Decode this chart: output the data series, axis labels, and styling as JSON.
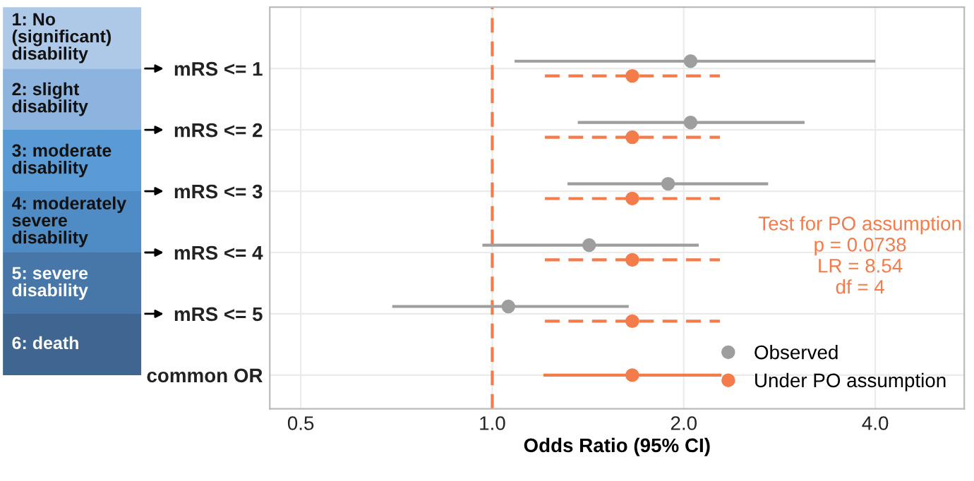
{
  "chart_data": {
    "type": "scatter",
    "orientation": "horizontal",
    "xlabel": "Odds Ratio (95% CI)",
    "categories": [
      "mRS <= 1",
      "mRS <= 2",
      "mRS <= 3",
      "mRS <= 4",
      "mRS <= 5",
      "common OR"
    ],
    "series": [
      {
        "name": "Observed",
        "color": "#9e9e9e",
        "line_style": "solid",
        "values": [
          2.05,
          2.05,
          1.89,
          1.42,
          1.06,
          null
        ],
        "errors": [
          [
            1.09,
            3.98
          ],
          [
            1.37,
            3.08
          ],
          [
            1.32,
            2.7
          ],
          [
            0.97,
            2.1
          ],
          [
            0.7,
            1.63
          ],
          null
        ]
      },
      {
        "name": "Under PO assumption",
        "color": "#f47b4a",
        "line_style": "dashed",
        "values": [
          1.66,
          1.66,
          1.66,
          1.66,
          1.66,
          null
        ],
        "errors": [
          [
            1.21,
            2.28
          ],
          [
            1.21,
            2.28
          ],
          [
            1.21,
            2.28
          ],
          [
            1.21,
            2.28
          ],
          [
            1.21,
            2.28
          ],
          null
        ]
      },
      {
        "color": "#f47b4a",
        "line_style": "solid",
        "values": [
          null,
          null,
          null,
          null,
          null,
          1.66
        ],
        "errors": [
          null,
          null,
          null,
          null,
          null,
          [
            1.21,
            2.28
          ]
        ]
      }
    ],
    "log": "x",
    "xlim": [
      0.447,
      5.52
    ],
    "xticks": [
      0.5,
      {
        "value": 1,
        "label": "1.0"
      },
      {
        "value": 2,
        "label": "2.0"
      },
      {
        "value": 4,
        "label": "4.0"
      }
    ],
    "ref_lines": [
      {
        "axis": "x",
        "value": 1,
        "color": "#f47b4a",
        "line_style": "dashed"
      }
    ],
    "grid": true,
    "legend": "bottom right",
    "marker": "circle",
    "annotations": [
      "1: No\n(significant)\ndisability",
      "2: slight\ndisability",
      "3: moderate\ndisability",
      "4: moderately\nsevere\ndisability",
      "5: severe\ndisability",
      "6: death",
      "Test for PO assumption\np = 0.0738\nLR = 8.54\ndf = 4"
    ]
  }
}
